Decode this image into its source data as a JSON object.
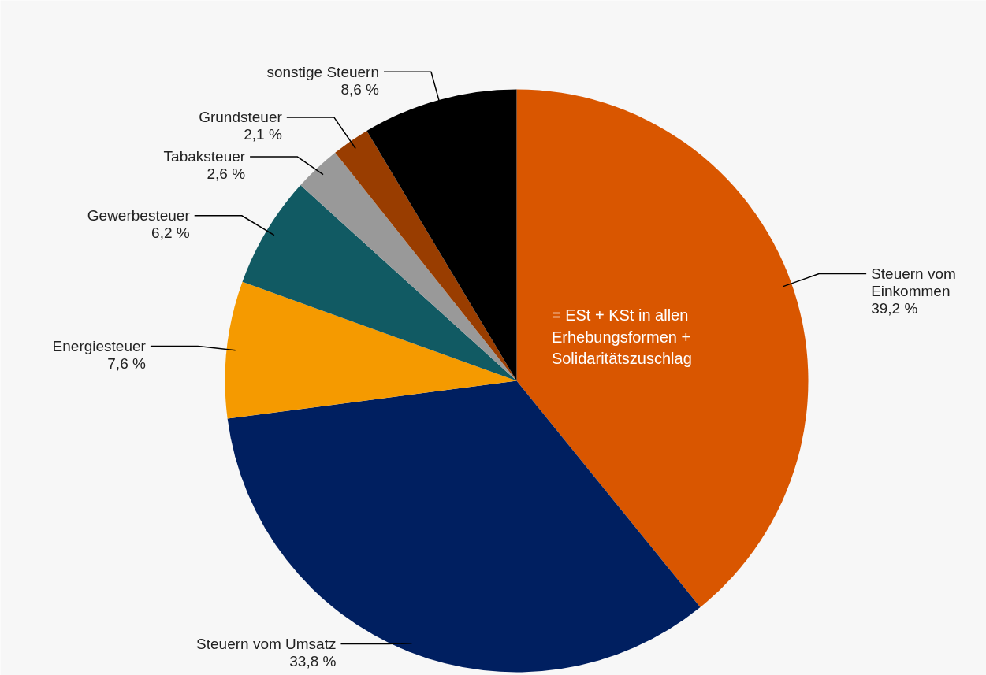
{
  "chart_data": {
    "type": "pie",
    "categories": [
      "Steuern vom Einkommen",
      "Steuern vom Umsatz",
      "Energiesteuer",
      "Gewerbesteuer",
      "Tabaksteuer",
      "Grundsteuer",
      "sonstige Steuern"
    ],
    "values": [
      39.2,
      33.8,
      7.6,
      6.2,
      2.6,
      2.1,
      8.6
    ],
    "value_labels": [
      "39,2 %",
      "33,8 %",
      "7,6 %",
      "6,2 %",
      "2,6 %",
      "2,1 %",
      "8,6 %"
    ],
    "colors": [
      "#d95600",
      "#001f60",
      "#f59a00",
      "#115a63",
      "#999999",
      "#993d00",
      "#000000"
    ],
    "annotations": [
      "= ESt + KSt in allen Erhebungsformen + Solidaritätszuschlag"
    ]
  }
}
